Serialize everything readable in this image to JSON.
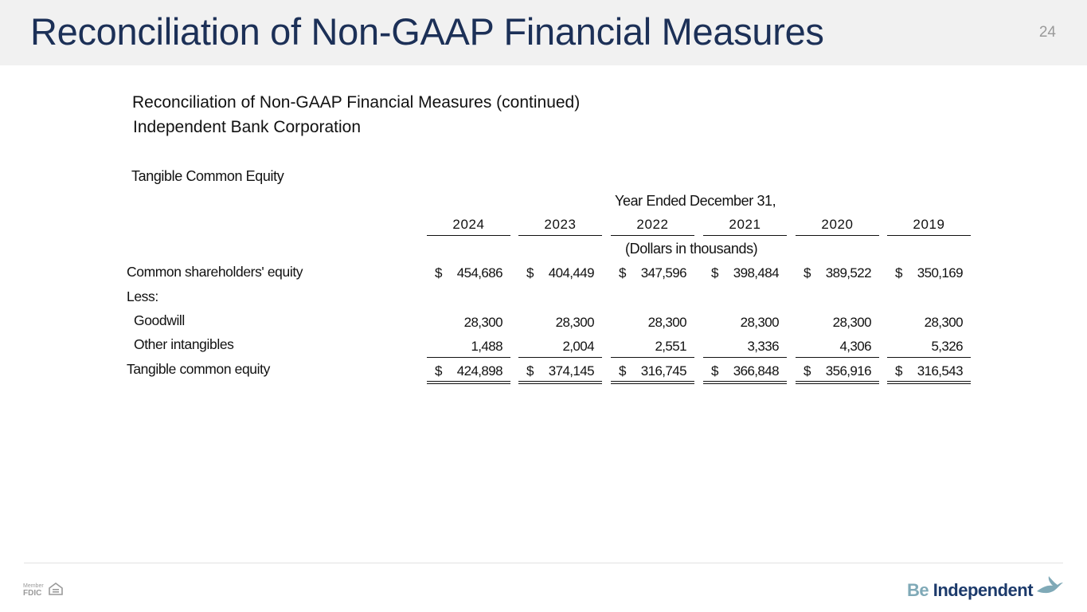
{
  "slide": {
    "title": "Reconciliation of Non-GAAP Financial Measures",
    "page_number": "24"
  },
  "document": {
    "title": "Reconciliation of Non-GAAP Financial Measures (continued)",
    "subtitle": "Independent Bank Corporation",
    "section": "Tangible Common Equity",
    "period_header": "Year Ended December 31,",
    "units": "(Dollars in thousands)"
  },
  "table": {
    "years": [
      "2024",
      "2023",
      "2022",
      "2021",
      "2020",
      "2019"
    ],
    "currency_symbol": "$",
    "rows": {
      "common_equity": {
        "label": "Common shareholders' equity",
        "values": [
          "454,686",
          "404,449",
          "347,596",
          "398,484",
          "389,522",
          "350,169"
        ]
      },
      "less": {
        "label": "Less:"
      },
      "goodwill": {
        "label": "Goodwill",
        "values": [
          "28,300",
          "28,300",
          "28,300",
          "28,300",
          "28,300",
          "28,300"
        ]
      },
      "other_intangibles": {
        "label": "Other intangibles",
        "values": [
          "1,488",
          "2,004",
          "2,551",
          "3,336",
          "4,306",
          "5,326"
        ]
      },
      "tangible_common_equity": {
        "label": "Tangible common equity",
        "values": [
          "424,898",
          "374,145",
          "316,745",
          "366,848",
          "356,916",
          "316,543"
        ]
      }
    }
  },
  "footer": {
    "fdic_member": "Member",
    "fdic_label": "FDIC",
    "brand_be": "Be",
    "brand_independent": "Independent"
  },
  "icons": {
    "equal_housing": "equal-housing-lender-icon",
    "brand_bird": "bird-logo-icon"
  },
  "colors": {
    "title": "#1c3057",
    "header_bg": "#f1f1f1",
    "brand_light": "#7fa9b7",
    "brand_dark": "#1c3a6b"
  }
}
